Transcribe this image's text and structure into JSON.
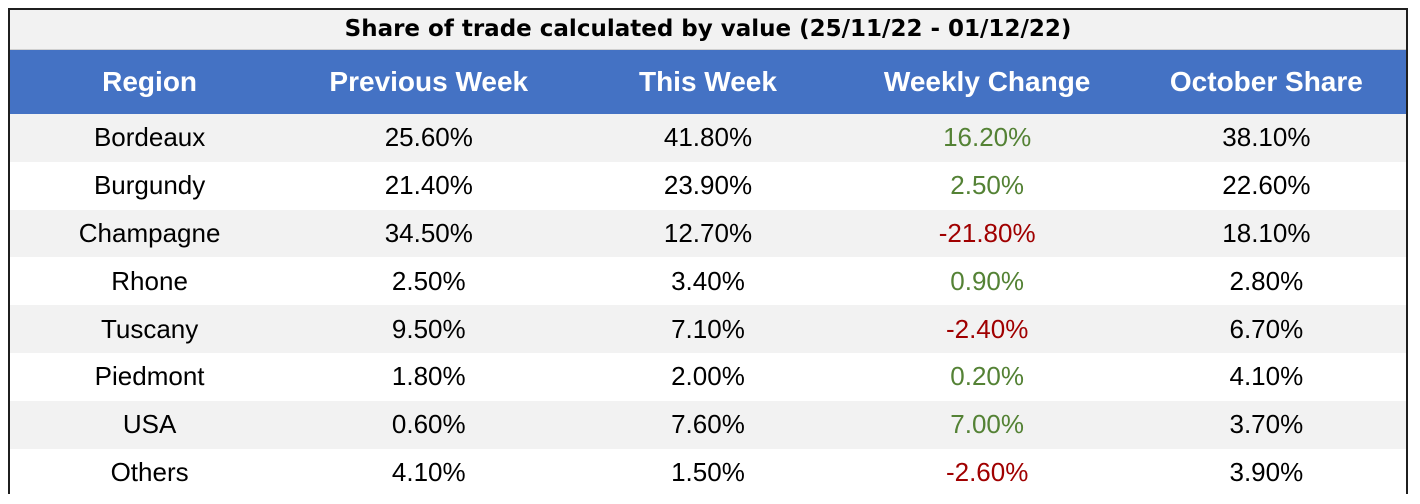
{
  "chart_data": {
    "type": "table",
    "title": "Share of trade calculated by value (25/11/22 - 01/12/22)",
    "columns": [
      "Region",
      "Previous Week",
      "This Week",
      "Weekly Change",
      "October Share"
    ],
    "rows": [
      {
        "region": "Bordeaux",
        "previous_week": "25.60%",
        "this_week": "41.80%",
        "weekly_change": "16.20%",
        "october_share": "38.10%",
        "change_sign": "pos"
      },
      {
        "region": "Burgundy",
        "previous_week": "21.40%",
        "this_week": "23.90%",
        "weekly_change": "2.50%",
        "october_share": "22.60%",
        "change_sign": "pos"
      },
      {
        "region": "Champagne",
        "previous_week": "34.50%",
        "this_week": "12.70%",
        "weekly_change": "-21.80%",
        "october_share": "18.10%",
        "change_sign": "neg"
      },
      {
        "region": "Rhone",
        "previous_week": "2.50%",
        "this_week": "3.40%",
        "weekly_change": "0.90%",
        "october_share": "2.80%",
        "change_sign": "pos"
      },
      {
        "region": "Tuscany",
        "previous_week": "9.50%",
        "this_week": "7.10%",
        "weekly_change": "-2.40%",
        "october_share": "6.70%",
        "change_sign": "neg"
      },
      {
        "region": "Piedmont",
        "previous_week": "1.80%",
        "this_week": "2.00%",
        "weekly_change": "0.20%",
        "october_share": "4.10%",
        "change_sign": "pos"
      },
      {
        "region": "USA",
        "previous_week": "0.60%",
        "this_week": "7.60%",
        "weekly_change": "7.00%",
        "october_share": "3.70%",
        "change_sign": "pos"
      },
      {
        "region": "Others",
        "previous_week": "4.10%",
        "this_week": "1.50%",
        "weekly_change": "-2.60%",
        "october_share": "3.90%",
        "change_sign": "neg"
      }
    ],
    "colors": {
      "header_bg": "#4472c4",
      "header_text": "#ffffff",
      "positive_change": "#548235",
      "negative_change": "#a00000",
      "band": "#f2f2f2"
    }
  }
}
